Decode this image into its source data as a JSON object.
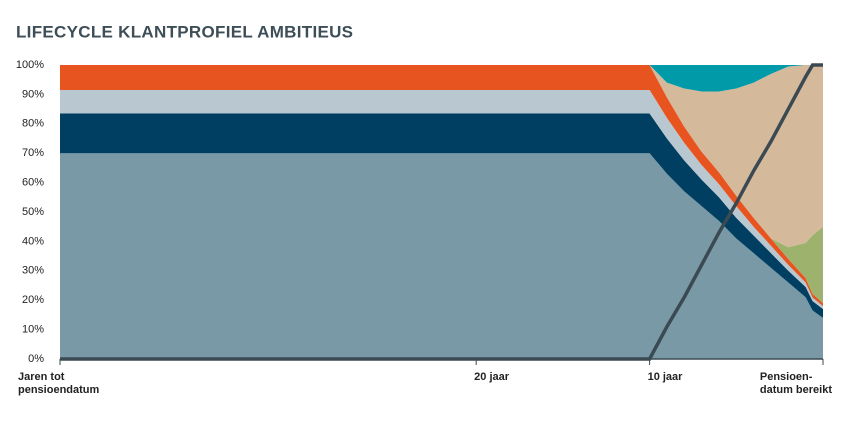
{
  "chart_data": {
    "type": "stacked_area_line",
    "title": "LIFECYCLE KLANTPROFIEL AMBITIEUS",
    "x": [
      44,
      10,
      9,
      8,
      7,
      6,
      5,
      4,
      3,
      2,
      1,
      0.6,
      0
    ],
    "xlim": [
      44,
      0
    ],
    "xticks": [
      {
        "value": 44,
        "label": "Jaren tot\npensioendatum"
      },
      {
        "value": 20,
        "label": "20 jaar"
      },
      {
        "value": 10,
        "label": "10 jaar"
      },
      {
        "value": 0,
        "label": "Pensioen-\ndatum bereikt"
      }
    ],
    "ylim": [
      0,
      100
    ],
    "yticks": [
      {
        "value": 0,
        "label": "0%"
      },
      {
        "value": 10,
        "label": "10%"
      },
      {
        "value": 20,
        "label": "20%"
      },
      {
        "value": 30,
        "label": "30%"
      },
      {
        "value": 40,
        "label": "40%"
      },
      {
        "value": 50,
        "label": "50%"
      },
      {
        "value": 60,
        "label": "60%"
      },
      {
        "value": 70,
        "label": "70%"
      },
      {
        "value": 80,
        "label": "80%"
      },
      {
        "value": 90,
        "label": "90%"
      },
      {
        "value": 100,
        "label": "100%"
      }
    ],
    "series": [
      {
        "color": "#7899a5",
        "values": [
          70,
          70,
          63,
          57,
          52,
          47,
          41,
          36,
          31,
          26,
          21,
          16.5,
          14
        ]
      },
      {
        "color": "#003f62",
        "values": [
          13.5,
          13.5,
          12,
          10.5,
          9,
          8,
          7,
          6,
          5,
          4,
          3.5,
          3.2,
          3
        ]
      },
      {
        "color": "#b8c7d0",
        "values": [
          8,
          8,
          7,
          6,
          5,
          4.5,
          4,
          3,
          2.5,
          2,
          1.5,
          1.2,
          1
        ]
      },
      {
        "color": "#e8541f",
        "values": [
          8.5,
          8.5,
          7,
          5.5,
          4.5,
          4,
          3.5,
          3,
          2.5,
          2,
          1.5,
          1.2,
          1
        ]
      },
      {
        "color": "#9db36d",
        "values": [
          0,
          0,
          0,
          0,
          0,
          0,
          0,
          0,
          0,
          4,
          12,
          20,
          26
        ]
      },
      {
        "color": "#d4b99b",
        "values": [
          0,
          0,
          5,
          13,
          20.5,
          27.5,
          36.5,
          46,
          56,
          61.5,
          60.5,
          57.9,
          55
        ]
      },
      {
        "color": "#009aa9",
        "values": [
          0,
          0,
          6,
          8,
          9,
          9,
          8,
          6,
          3,
          0.5,
          0,
          0,
          0
        ]
      },
      {
        "color": "#3b4a52",
        "kind": "line",
        "values": [
          0,
          0,
          11,
          21,
          32,
          43,
          53,
          64,
          74,
          85,
          96,
          100,
          100
        ]
      }
    ]
  }
}
